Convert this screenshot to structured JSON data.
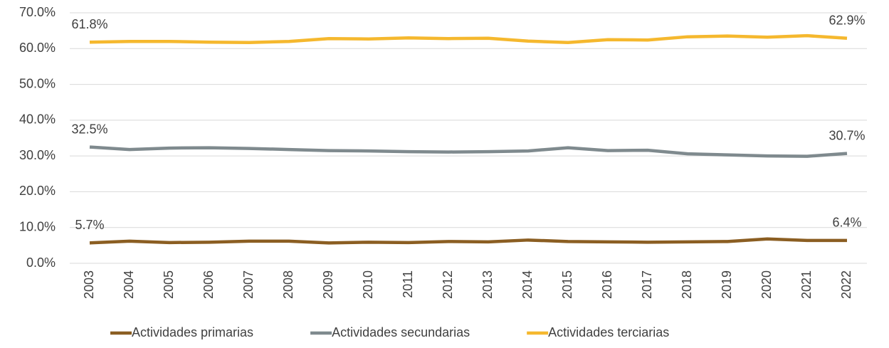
{
  "chart_data": {
    "type": "line",
    "categories": [
      "2003",
      "2004",
      "2005",
      "2006",
      "2007",
      "2008",
      "2009",
      "2010",
      "2011",
      "2012",
      "2013",
      "2014",
      "2015",
      "2016",
      "2017",
      "2018",
      "2019",
      "2020",
      "2021",
      "2022"
    ],
    "series": [
      {
        "name": "Actividades primarias",
        "color": "#8B5E22",
        "values": [
          5.7,
          6.2,
          5.8,
          5.9,
          6.2,
          6.2,
          5.7,
          5.9,
          5.8,
          6.1,
          6.0,
          6.5,
          6.1,
          6.0,
          5.9,
          6.0,
          6.1,
          6.8,
          6.4,
          6.4
        ],
        "value_labels": [
          "5.7%",
          null,
          null,
          null,
          null,
          null,
          null,
          null,
          null,
          null,
          null,
          null,
          null,
          null,
          null,
          null,
          null,
          null,
          null,
          "6.4%"
        ]
      },
      {
        "name": "Actividades secundarias",
        "color": "#7F8A8E",
        "values": [
          32.5,
          31.8,
          32.2,
          32.3,
          32.1,
          31.8,
          31.5,
          31.4,
          31.2,
          31.1,
          31.2,
          31.4,
          32.3,
          31.5,
          31.6,
          30.6,
          30.3,
          30.0,
          29.9,
          30.7
        ],
        "value_labels": [
          "32.5%",
          null,
          null,
          null,
          null,
          null,
          null,
          null,
          null,
          null,
          null,
          null,
          null,
          null,
          null,
          null,
          null,
          null,
          null,
          "30.7%"
        ]
      },
      {
        "name": "Actividades terciarias",
        "color": "#F5B82E",
        "values": [
          61.8,
          62.0,
          62.0,
          61.8,
          61.7,
          62.0,
          62.8,
          62.7,
          63.0,
          62.8,
          62.9,
          62.1,
          61.7,
          62.5,
          62.4,
          63.3,
          63.5,
          63.2,
          63.6,
          62.9
        ],
        "value_labels": [
          "61.8%",
          null,
          null,
          null,
          null,
          null,
          null,
          null,
          null,
          null,
          null,
          null,
          null,
          null,
          null,
          null,
          null,
          null,
          null,
          "62.9%"
        ]
      }
    ],
    "ylim": [
      0,
      70
    ],
    "yticks": [
      {
        "value": 0,
        "label": "0.0%"
      },
      {
        "value": 10,
        "label": "10.0%"
      },
      {
        "value": 20,
        "label": "20.0%"
      },
      {
        "value": 30,
        "label": "30.0%"
      },
      {
        "value": 40,
        "label": "40.0%"
      },
      {
        "value": 50,
        "label": "50.0%"
      },
      {
        "value": 60,
        "label": "60.0%"
      },
      {
        "value": 70,
        "label": "70.0%"
      }
    ],
    "grid": true,
    "legend": "bottom"
  }
}
